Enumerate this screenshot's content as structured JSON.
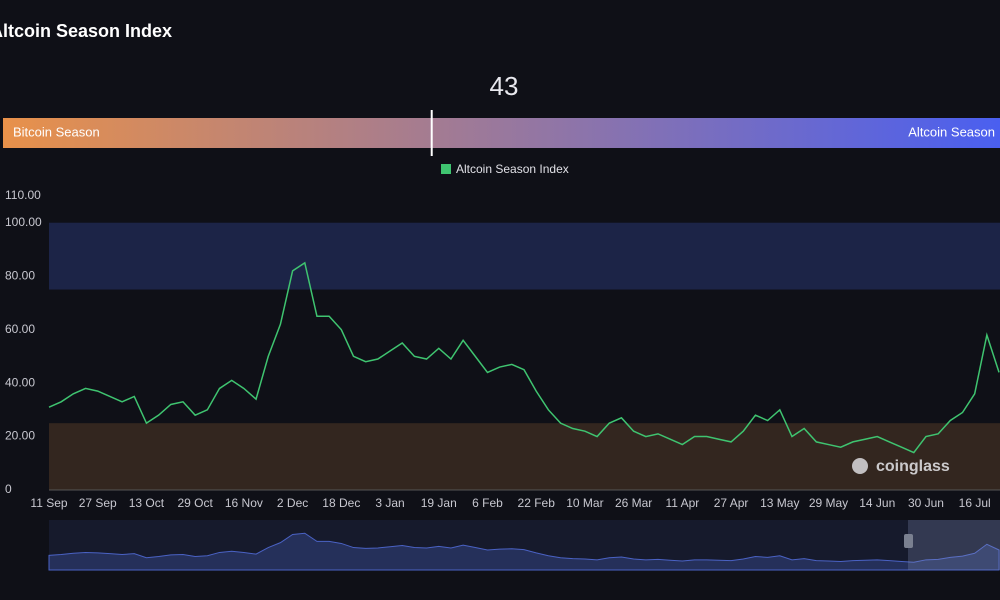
{
  "chart_data": [
    {
      "type": "gauge",
      "value": 43,
      "range": [
        0,
        100
      ],
      "min_label": "Bitcoin Season",
      "max_label": "Altcoin Season",
      "colors": [
        "#e8914a",
        "#4a5ff0"
      ]
    },
    {
      "type": "line",
      "title": "Altcoin Season Index",
      "categories": [
        "11 Sep",
        null,
        null,
        null,
        "27 Sep",
        null,
        null,
        null,
        "13 Oct",
        null,
        null,
        null,
        "29 Oct",
        null,
        null,
        null,
        "16 Nov",
        null,
        null,
        null,
        "2 Dec",
        null,
        null,
        null,
        "18 Dec",
        null,
        null,
        null,
        "3 Jan",
        null,
        null,
        null,
        "19 Jan",
        null,
        null,
        null,
        "6 Feb",
        null,
        null,
        null,
        "22 Feb",
        null,
        null,
        null,
        "10 Mar",
        null,
        null,
        null,
        "26 Mar",
        null,
        null,
        null,
        "11 Apr",
        null,
        null,
        null,
        "27 Apr",
        null,
        null,
        null,
        "13 May",
        null,
        null,
        null,
        "29 May",
        null,
        null,
        null,
        "14 Jun",
        null,
        null,
        null,
        "30 Jun",
        null,
        null,
        null,
        "16 Jul",
        null,
        null
      ],
      "series": [
        {
          "name": "Altcoin Season Index",
          "color": "#3fc470",
          "values": [
            31,
            33,
            36,
            38,
            37,
            35,
            33,
            35,
            25,
            28,
            32,
            33,
            28,
            30,
            38,
            41,
            38,
            34,
            50,
            62,
            82,
            85,
            65,
            65,
            60,
            50,
            48,
            49,
            52,
            55,
            50,
            49,
            53,
            49,
            56,
            50,
            44,
            46,
            47,
            45,
            37,
            30,
            25,
            23,
            22,
            20,
            25,
            27,
            22,
            20,
            21,
            19,
            17,
            20,
            20,
            19,
            18,
            22,
            28,
            26,
            30,
            20,
            23,
            18,
            17,
            16,
            18,
            19,
            20,
            18,
            16,
            14,
            20,
            21,
            26,
            29,
            36,
            58,
            44
          ]
        }
      ],
      "bands": [
        {
          "from": 75,
          "to": 100,
          "color": "#1c2447"
        },
        {
          "from": 0,
          "to": 25,
          "color": "#33261f"
        }
      ],
      "ylim": [
        0,
        110
      ],
      "yticks": [
        0,
        {
          "value": 20,
          "label": "20.00"
        },
        {
          "value": 40,
          "label": "40.00"
        },
        {
          "value": 60,
          "label": "60.00"
        },
        {
          "value": 80,
          "label": "80.00"
        },
        {
          "value": 100,
          "label": "100.00"
        },
        {
          "value": 110,
          "label": "110.00"
        }
      ],
      "watermark": "coinglass"
    }
  ]
}
